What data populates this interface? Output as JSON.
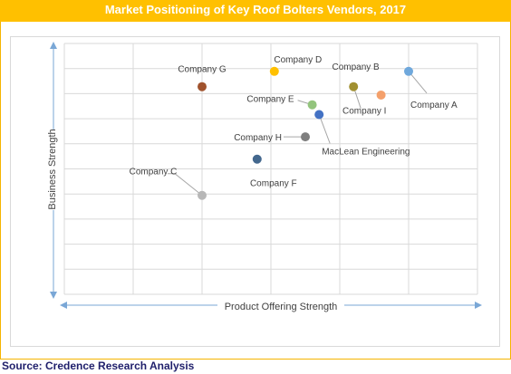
{
  "title": "Market Positioning of Key Roof Bolters Vendors, 2017",
  "source": "Source: Credence Research Analysis",
  "chart_data": {
    "type": "scatter",
    "xlabel": "Product Offering Strength",
    "ylabel": "Business Strength",
    "xlim": [
      0,
      6
    ],
    "ylim": [
      0,
      9
    ],
    "grid": true,
    "points": [
      {
        "label": "Company A",
        "x": 5.0,
        "y": 8.0,
        "color": "#6fa8dc"
      },
      {
        "label": "Company B",
        "x": 4.6,
        "y": 7.15,
        "color": "#f4a06b"
      },
      {
        "label": "Company I",
        "x": 4.2,
        "y": 7.45,
        "color": "#a19031"
      },
      {
        "label": "Company D",
        "x": 3.05,
        "y": 8.0,
        "color": "#ffc000"
      },
      {
        "label": "Company G",
        "x": 2.0,
        "y": 7.45,
        "color": "#a0522d"
      },
      {
        "label": "Company E",
        "x": 3.6,
        "y": 6.8,
        "color": "#93c47d"
      },
      {
        "label": "MacLean Engineering",
        "x": 3.7,
        "y": 6.45,
        "color": "#4472c4"
      },
      {
        "label": "Company H",
        "x": 3.5,
        "y": 5.65,
        "color": "#7f7f7f"
      },
      {
        "label": "Company F",
        "x": 2.8,
        "y": 4.85,
        "color": "#44688e"
      },
      {
        "label": "Company C",
        "x": 2.0,
        "y": 3.55,
        "color": "#b7b7b7"
      }
    ]
  }
}
